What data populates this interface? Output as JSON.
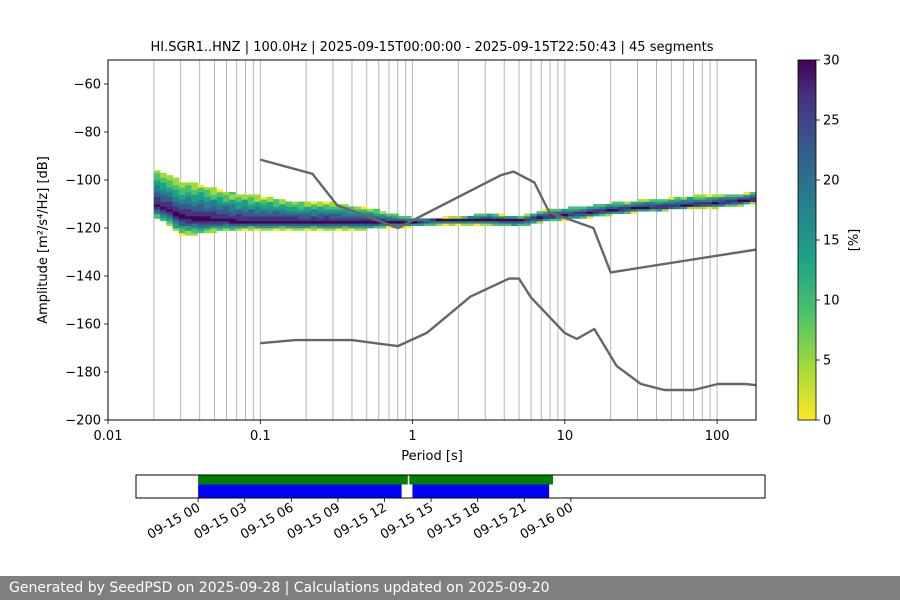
{
  "chart_data": {
    "type": "heatmap",
    "title": "HI.SGR1..HNZ | 100.0Hz | 2025-09-15T00:00:00 - 2025-09-15T22:50:43 | 45 segments",
    "xlabel": "Period [s]",
    "ylabel": "Amplitude [m²/s⁴/Hz] [dB]",
    "x_scale": "log",
    "xlim": [
      0.01,
      180
    ],
    "ylim": [
      -200,
      -50
    ],
    "x_ticks": [
      0.01,
      0.1,
      1,
      10,
      100
    ],
    "x_tick_labels": [
      "0.01",
      "0.1",
      "1",
      "10",
      "100"
    ],
    "y_ticks": [
      -200,
      -180,
      -160,
      -140,
      -120,
      -100,
      -80,
      -60
    ],
    "y_tick_labels": [
      "−200",
      "−180",
      "−160",
      "−140",
      "−120",
      "−100",
      "−80",
      "−60"
    ],
    "grid": "vertical log lines",
    "colorbar": {
      "label": "[%]",
      "range": [
        0,
        30
      ],
      "ticks": [
        0,
        5,
        10,
        15,
        20,
        25,
        30
      ],
      "tick_labels": [
        "0",
        "5",
        "10",
        "15",
        "20",
        "25",
        "30"
      ]
    },
    "noise_models": {
      "high": {
        "name": "NHNM",
        "x": [
          0.1,
          0.22,
          0.32,
          0.8,
          3.8,
          4.6,
          6.3,
          7.9,
          15.4,
          20,
          180
        ],
        "y": [
          -91.5,
          -97.4,
          -110.5,
          -120,
          -98,
          -96.5,
          -101,
          -113.5,
          -120,
          -138.5,
          -129
        ]
      },
      "low": {
        "name": "NLNM",
        "x": [
          0.1,
          0.17,
          0.4,
          0.8,
          1.24,
          2.4,
          4.3,
          5,
          6,
          10,
          12,
          15.6,
          21.9,
          31.6,
          45,
          70,
          101,
          154,
          180
        ],
        "y": [
          -168,
          -166.7,
          -166.7,
          -169.2,
          -163.7,
          -148.6,
          -141.1,
          -141.1,
          -149,
          -163.8,
          -166.2,
          -162.1,
          -177.5,
          -185,
          -187.5,
          -187.5,
          -185,
          -185,
          -185.5
        ]
      }
    },
    "psd_density": {
      "x": [
        0.02,
        0.025,
        0.03,
        0.04,
        0.05,
        0.07,
        0.1,
        0.15,
        0.2,
        0.3,
        0.5,
        0.7,
        1,
        1.5,
        2,
        3,
        5,
        7,
        10,
        15,
        20,
        30,
        50,
        70,
        100,
        150,
        180
      ],
      "mode_db": [
        -111,
        -113,
        -116,
        -117,
        -117,
        -118,
        -118,
        -118,
        -118,
        -118,
        -118,
        -118,
        -118,
        -117,
        -117,
        -117,
        -117,
        -116,
        -115,
        -114,
        -113,
        -112,
        -111.5,
        -111,
        -110,
        -109,
        -108.5
      ],
      "lower_db": [
        -116,
        -119,
        -123,
        -123,
        -122,
        -121,
        -121,
        -121,
        -121,
        -121,
        -121,
        -120,
        -120,
        -119,
        -119,
        -119,
        -120,
        -118,
        -117,
        -116,
        -115,
        -114,
        -113,
        -112,
        -112,
        -111,
        -110
      ],
      "upper_db": [
        -96,
        -98,
        -101,
        -102,
        -104,
        -106,
        -107,
        -109,
        -110,
        -110,
        -112,
        -114,
        -116,
        -117,
        -116,
        -114,
        -116,
        -113,
        -112,
        -111,
        -110,
        -109,
        -108,
        -107,
        -107,
        -106,
        -105
      ]
    },
    "timeline": {
      "tick_labels": [
        "09-15 00",
        "09-15 03",
        "09-15 06",
        "09-15 09",
        "09-15 12",
        "09-15 15",
        "09-15 18",
        "09-15 21",
        "09-16 00"
      ],
      "range_hours": [
        -4,
        36.5
      ],
      "data_segments_hours": [
        [
          0,
          13.5
        ],
        [
          13.6,
          22.85
        ]
      ],
      "psd_segments_hours": [
        [
          0,
          13.1
        ],
        [
          13.8,
          22.6
        ]
      ],
      "data_color": "#008000",
      "psd_color": "#0000ff"
    }
  },
  "colors": {
    "noise_model": "#666666",
    "grid": "#b0b0b0",
    "footer_bg": "#7f7f7f"
  },
  "footer": {
    "text": "Generated by SeedPSD on 2025-09-28 | Calculations updated on 2025-09-20"
  }
}
